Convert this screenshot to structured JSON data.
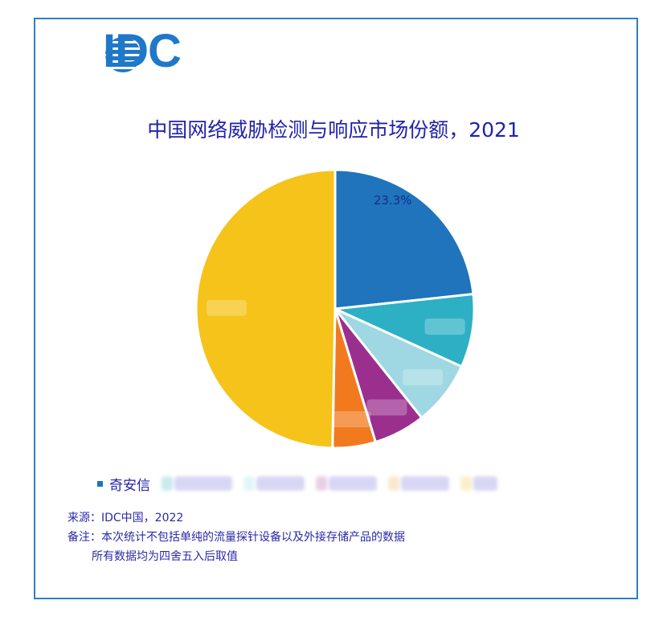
{
  "logo": {
    "text": "IDC",
    "icon": "globe-stripes-icon",
    "color": "#1f78c8"
  },
  "title": "中国网络威胁检测与响应市场份额，2021",
  "chart_data": {
    "type": "pie",
    "title": "中国网络威胁检测与响应市场份额，2021",
    "start_angle_deg": 0,
    "direction": "clockwise",
    "slices": [
      {
        "label": "奇安信",
        "value": 23.3,
        "color": "#1f74bc",
        "value_label": "23.3%"
      },
      {
        "label": "[redacted]",
        "value": 8.5,
        "color": "#2eb0c4",
        "value_label": ""
      },
      {
        "label": "[redacted]",
        "value": 7.5,
        "color": "#9fd8e2",
        "value_label": ""
      },
      {
        "label": "[redacted]",
        "value": 6.0,
        "color": "#9b2f8e",
        "value_label": ""
      },
      {
        "label": "[redacted]",
        "value": 5.0,
        "color": "#f27a1e",
        "value_label": ""
      },
      {
        "label": "[redacted]",
        "value": 49.7,
        "color": "#f5c31a",
        "value_label": ""
      }
    ],
    "legend_position": "bottom"
  },
  "legend": {
    "items": [
      {
        "label": "奇安信",
        "color": "#1f74bc"
      },
      {
        "label": "",
        "color": "#9fd8e2"
      },
      {
        "label": "",
        "color": "#c9eef2"
      },
      {
        "label": "",
        "color": "#d6a8d4"
      },
      {
        "label": "",
        "color": "#f5d6a8"
      },
      {
        "label": "",
        "color": "#f7e3a0"
      }
    ]
  },
  "notes": {
    "source": "来源：IDC中国，2022",
    "remark_line1": "备注：本次统计不包括单纯的流量探针设备以及外接存储产品的数据",
    "remark_line2": "所有数据均为四舍五入后取值"
  }
}
